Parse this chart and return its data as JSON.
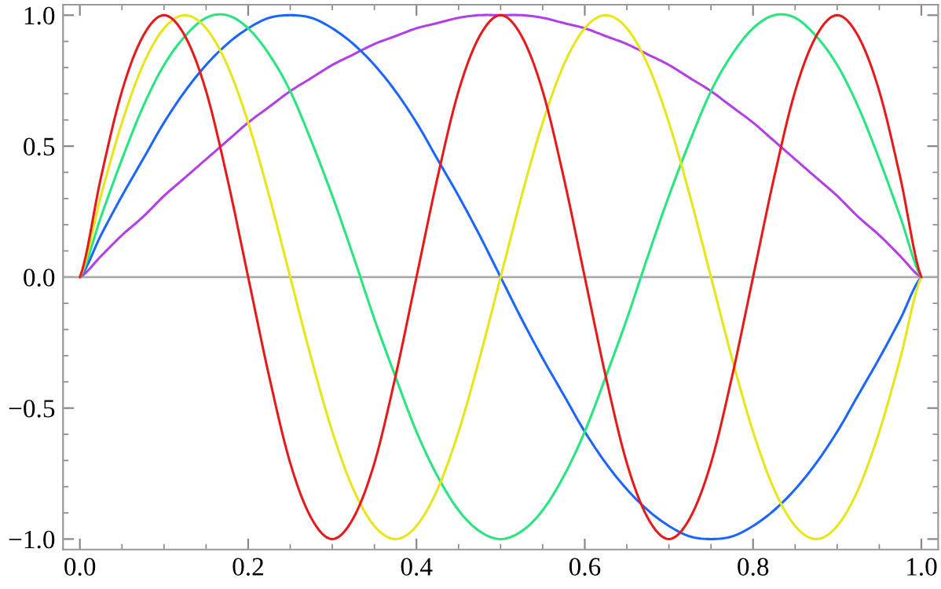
{
  "chart_data": {
    "type": "line",
    "x": [
      0,
      0.025,
      0.05,
      0.075,
      0.1,
      0.125,
      0.15,
      0.175,
      0.2,
      0.225,
      0.25,
      0.275,
      0.3,
      0.325,
      0.35,
      0.375,
      0.4,
      0.425,
      0.45,
      0.475,
      0.5,
      0.525,
      0.55,
      0.575,
      0.6,
      0.625,
      0.65,
      0.675,
      0.7,
      0.725,
      0.75,
      0.775,
      0.8,
      0.825,
      0.85,
      0.875,
      0.9,
      0.925,
      0.95,
      0.975,
      1
    ],
    "series": [
      {
        "color": "#b340e6",
        "values": [
          0,
          0.08,
          0.16,
          0.23,
          0.31,
          0.38,
          0.45,
          0.52,
          0.59,
          0.65,
          0.71,
          0.76,
          0.81,
          0.85,
          0.89,
          0.92,
          0.95,
          0.97,
          0.99,
          1,
          1,
          1,
          0.99,
          0.97,
          0.95,
          0.92,
          0.89,
          0.85,
          0.81,
          0.76,
          0.71,
          0.65,
          0.59,
          0.52,
          0.45,
          0.38,
          0.31,
          0.23,
          0.16,
          0.08,
          0
        ]
      },
      {
        "color": "#1a66ff",
        "values": [
          0,
          0.16,
          0.31,
          0.45,
          0.59,
          0.71,
          0.81,
          0.89,
          0.95,
          0.99,
          1,
          0.99,
          0.95,
          0.89,
          0.81,
          0.71,
          0.59,
          0.45,
          0.31,
          0.16,
          0,
          -0.16,
          -0.31,
          -0.45,
          -0.59,
          -0.71,
          -0.81,
          -0.89,
          -0.95,
          -0.99,
          -1,
          -0.99,
          -0.95,
          -0.89,
          -0.81,
          -0.71,
          -0.59,
          -0.45,
          -0.31,
          -0.16,
          0
        ]
      },
      {
        "color": "#26e680",
        "values": [
          0,
          0.23,
          0.45,
          0.65,
          0.81,
          0.92,
          0.99,
          1,
          0.95,
          0.85,
          0.71,
          0.52,
          0.31,
          0.08,
          -0.16,
          -0.38,
          -0.59,
          -0.76,
          -0.89,
          -0.97,
          -1,
          -0.97,
          -0.89,
          -0.76,
          -0.59,
          -0.38,
          -0.16,
          0.08,
          0.31,
          0.52,
          0.71,
          0.85,
          0.95,
          1,
          0.99,
          0.92,
          0.81,
          0.65,
          0.45,
          0.23,
          0
        ]
      },
      {
        "color": "#e6e619",
        "values": [
          0,
          0.31,
          0.59,
          0.81,
          0.95,
          1,
          0.95,
          0.81,
          0.59,
          0.31,
          0,
          -0.31,
          -0.59,
          -0.81,
          -0.95,
          -1,
          -0.95,
          -0.81,
          -0.59,
          -0.31,
          0,
          0.31,
          0.59,
          0.81,
          0.95,
          1,
          0.95,
          0.81,
          0.59,
          0.31,
          0,
          -0.31,
          -0.59,
          -0.81,
          -0.95,
          -1,
          -0.95,
          -0.81,
          -0.59,
          -0.31,
          0
        ]
      },
      {
        "color": "#e61a1a",
        "values": [
          0,
          0.38,
          0.71,
          0.92,
          1,
          0.92,
          0.71,
          0.38,
          0,
          -0.38,
          -0.71,
          -0.92,
          -1,
          -0.92,
          -0.71,
          -0.38,
          0,
          0.38,
          0.71,
          0.92,
          1,
          0.92,
          0.71,
          0.38,
          0,
          -0.38,
          -0.71,
          -0.92,
          -1,
          -0.92,
          -0.71,
          -0.38,
          0,
          0.38,
          0.71,
          0.92,
          1,
          0.92,
          0.71,
          0.38,
          0
        ]
      }
    ],
    "xlim": [
      -0.02,
      1.02
    ],
    "xticks": [
      {
        "value": 0,
        "label": "0.0"
      },
      {
        "value": 0.2,
        "label": "0.2"
      },
      {
        "value": 0.4,
        "label": "0.4"
      },
      {
        "value": 0.6,
        "label": "0.6"
      },
      {
        "value": 0.8,
        "label": "0.8"
      },
      {
        "value": 1,
        "label": "1.0"
      }
    ],
    "ylim": [
      -1.04,
      1.04
    ],
    "yticks": [
      {
        "value": -1,
        "label": "−1.0"
      },
      {
        "value": -0.5,
        "label": "−0.5"
      },
      {
        "value": 0,
        "label": "0.0"
      },
      {
        "value": 0.5,
        "label": "0.5"
      },
      {
        "value": 1,
        "label": "1.0"
      }
    ],
    "ref_lines": [
      {
        "axis": "y",
        "value": 0,
        "color": "#aaaaaa"
      }
    ],
    "grid": false,
    "legend": false,
    "marker": "none",
    "line_style": "solid"
  }
}
